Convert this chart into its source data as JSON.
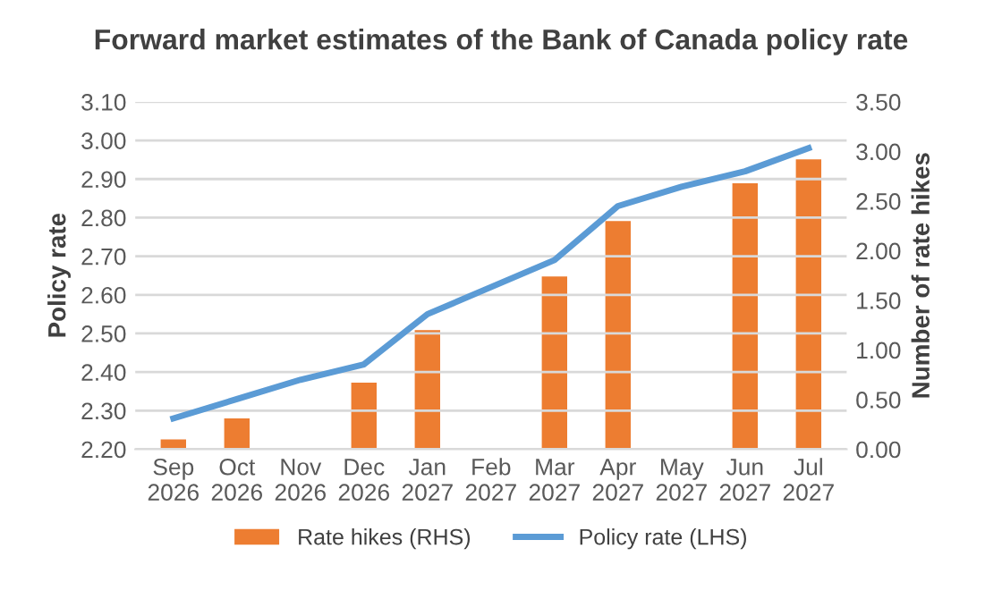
{
  "chart_data": {
    "type": "bar",
    "title": "Forward market estimates of the Bank of Canada policy rate",
    "categories": [
      "Sep\n2026",
      "Oct\n2026",
      "Nov\n2026",
      "Dec\n2026",
      "Jan\n2027",
      "Feb\n2027",
      "Mar\n2027",
      "Apr\n2027",
      "May\n2027",
      "Jun\n2027",
      "Jul\n2027"
    ],
    "ylabel": "Policy rate",
    "y2label": "Number of rate hikes",
    "series": [
      {
        "name": "Rate hikes (RHS)",
        "axis": "y2",
        "color": "#ed7d31",
        "values": [
          0.1,
          0.31,
          null,
          0.67,
          1.2,
          null,
          1.74,
          2.3,
          null,
          2.68,
          2.92
        ]
      },
      {
        "name": "Policy rate (LHS)",
        "type": "line",
        "axis": "y",
        "color": "#5b9bd5",
        "values": [
          2.28,
          2.33,
          2.38,
          2.42,
          2.55,
          2.62,
          2.69,
          2.83,
          2.88,
          2.92,
          2.98
        ]
      }
    ],
    "ylim": [
      2.2,
      3.1
    ],
    "yticks": [
      {
        "value": 2.2,
        "label": "2.20"
      },
      {
        "value": 2.3,
        "label": "2.30"
      },
      {
        "value": 2.4,
        "label": "2.40"
      },
      {
        "value": 2.5,
        "label": "2.50"
      },
      {
        "value": 2.6,
        "label": "2.60"
      },
      {
        "value": 2.7,
        "label": "2.70"
      },
      {
        "value": 2.8,
        "label": "2.80"
      },
      {
        "value": 2.9,
        "label": "2.90"
      },
      {
        "value": 3.0,
        "label": "3.00"
      },
      {
        "value": 3.1,
        "label": "3.10"
      }
    ],
    "y2lim": [
      0,
      3.5
    ],
    "y2ticks": [
      {
        "value": 0,
        "label": "0.00"
      },
      {
        "value": 0.5,
        "label": "0.50"
      },
      {
        "value": 1.0,
        "label": "1.00"
      },
      {
        "value": 1.5,
        "label": "1.50"
      },
      {
        "value": 2.0,
        "label": "2.00"
      },
      {
        "value": 2.5,
        "label": "2.50"
      },
      {
        "value": 3.0,
        "label": "3.00"
      },
      {
        "value": 3.5,
        "label": "3.50"
      }
    ],
    "grid": "y",
    "legend": "bottom"
  }
}
